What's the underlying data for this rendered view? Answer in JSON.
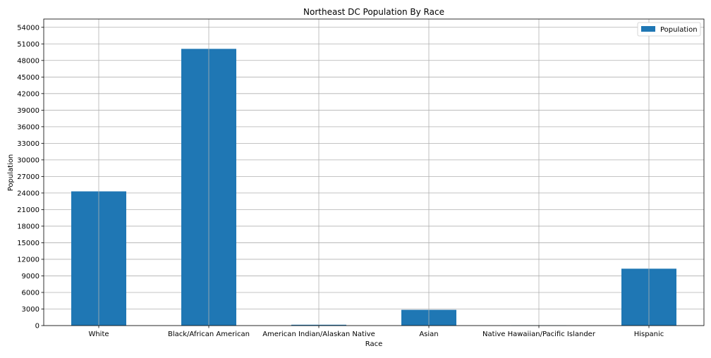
{
  "chart_data": {
    "type": "bar",
    "title": "Northeast DC Population By Race",
    "xlabel": "Race",
    "ylabel": "Population",
    "categories": [
      "White",
      "Black/African American",
      "American Indian/Alaskan Native",
      "Asian",
      "Native Hawaiian/Pacific Islander",
      "Hispanic"
    ],
    "series": [
      {
        "name": "Population",
        "color": "#1f77b4",
        "values": [
          24300,
          50100,
          150,
          2850,
          30,
          10300
        ]
      }
    ],
    "ylim": [
      0,
      55500
    ],
    "yticks": [
      0,
      3000,
      6000,
      9000,
      12000,
      15000,
      18000,
      21000,
      24000,
      27000,
      30000,
      33000,
      36000,
      39000,
      42000,
      45000,
      48000,
      51000,
      54000
    ],
    "grid": true,
    "legend_position": "top-right"
  }
}
